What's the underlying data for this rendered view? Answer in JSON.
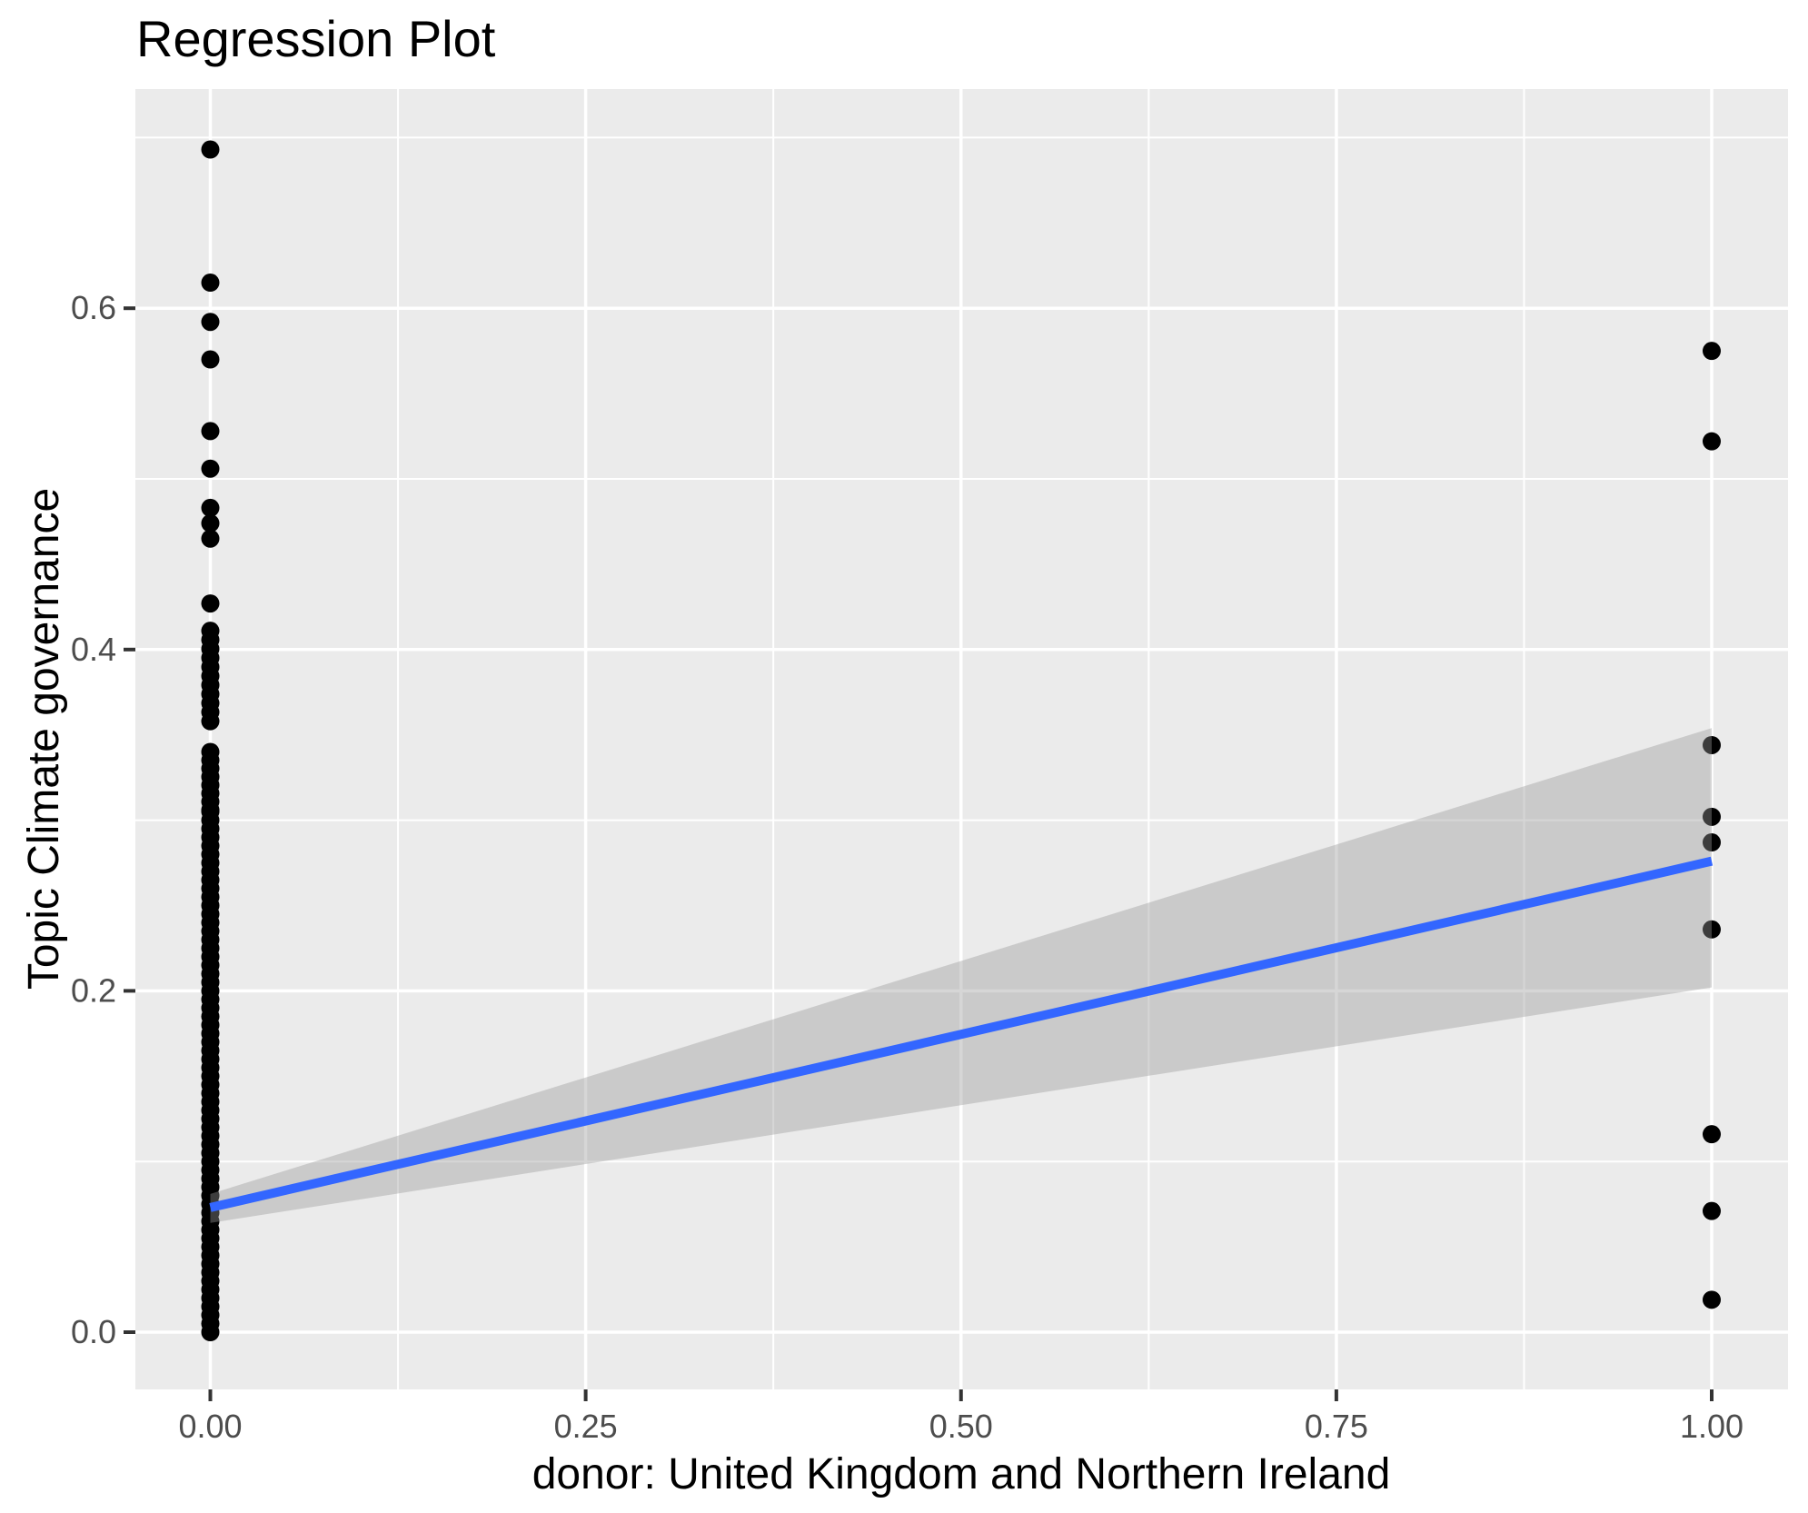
{
  "title": "Regression Plot",
  "chart_data": {
    "type": "scatter",
    "title": "Regression Plot",
    "xlabel": "donor: United Kingdom and Northern Ireland",
    "ylabel": "Topic Climate governance",
    "xlim": [
      -0.05,
      1.05
    ],
    "ylim": [
      -0.034,
      0.728
    ],
    "grid": "on",
    "legend": "none",
    "x_ticks": [
      0,
      0.25,
      0.5,
      0.75,
      1
    ],
    "x_tick_labels": [
      "0.00",
      "0.25",
      "0.50",
      "0.75",
      "1.00"
    ],
    "x_minor_ticks": [
      0.125,
      0.375,
      0.625,
      0.875
    ],
    "y_ticks": [
      0,
      0.2,
      0.4,
      0.6
    ],
    "y_tick_labels": [
      "0.0",
      "0.2",
      "0.4",
      "0.6"
    ],
    "y_minor_ticks": [
      0.1,
      0.3,
      0.5,
      0.7
    ],
    "series": [
      {
        "name": "observations at donor = 0",
        "x": 0,
        "dense_ranges": [
          {
            "from": 0.0,
            "to": 0.304,
            "step": 0.005
          },
          {
            "from": 0.306,
            "to": 0.34,
            "step": 0.00486
          },
          {
            "from": 0.358,
            "to": 0.411,
            "step": 0.0053
          }
        ],
        "points": [
          0.427,
          0.465,
          0.474,
          0.483,
          0.506,
          0.528,
          0.57,
          0.592,
          0.615,
          0.693
        ]
      },
      {
        "name": "observations at donor = 1",
        "x": 1,
        "dense_ranges": [],
        "points": [
          0.019,
          0.071,
          0.116,
          0.236,
          0.287,
          0.302,
          0.344,
          0.522,
          0.575
        ]
      }
    ],
    "regression": {
      "line": {
        "x": [
          0,
          1
        ],
        "y": [
          0.073,
          0.276
        ]
      },
      "ci_ribbon": {
        "x": [
          0,
          1
        ],
        "upper": [
          0.081,
          0.354
        ],
        "lower": [
          0.064,
          0.202
        ]
      }
    },
    "colors": {
      "point": "#000000",
      "regression_line": "#3366FF",
      "ribbon": "#999999",
      "ribbon_opacity": 0.4,
      "panel_background": "#EBEBEB",
      "gridline": "#FFFFFF",
      "tick_mark": "#333333",
      "tick_label": "#4D4D4D",
      "text": "#000000"
    }
  }
}
